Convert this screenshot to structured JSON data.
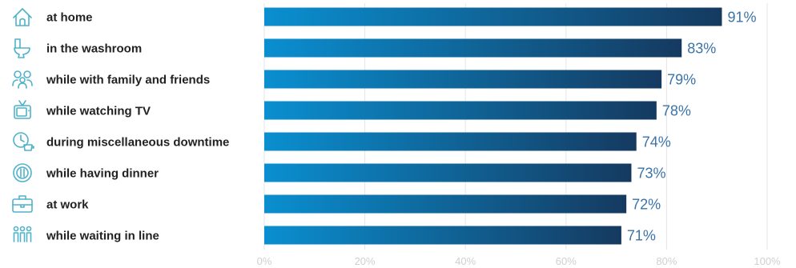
{
  "chart_data": {
    "type": "bar",
    "orientation": "horizontal",
    "categories": [
      "at home",
      "in the washroom",
      "while with family and friends",
      "while watching TV",
      "during miscellaneous downtime",
      "while having dinner",
      "at work",
      "while waiting in line"
    ],
    "values": [
      91,
      83,
      79,
      78,
      74,
      73,
      72,
      71
    ],
    "value_labels": [
      "91%",
      "83%",
      "79%",
      "78%",
      "74%",
      "73%",
      "72%",
      "71%"
    ],
    "xlim": [
      0,
      100
    ],
    "x_ticks": [
      "0%",
      "20%",
      "40%",
      "60%",
      "80%",
      "100%"
    ],
    "grid": true,
    "icons": [
      "house-icon",
      "toilet-icon",
      "family-icon",
      "tv-icon",
      "clock-coffee-icon",
      "plate-cutlery-icon",
      "briefcase-icon",
      "people-in-line-icon"
    ],
    "colors": {
      "bar_start": "#0a8fd0",
      "bar_end": "#153a60",
      "value_text": "#3a73a8",
      "icon": "#4fb3c8"
    }
  }
}
